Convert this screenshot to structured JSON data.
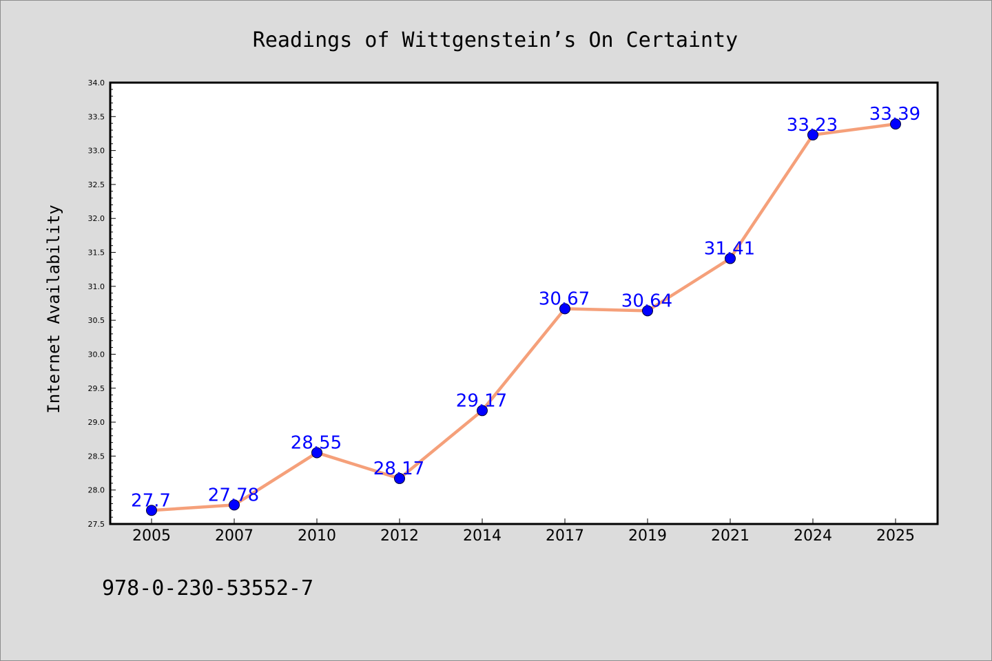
{
  "colors": {
    "background": "#dcdcdc",
    "plot_background": "#ffffff",
    "line": "#f5a07a",
    "marker": "#0000ff",
    "data_label": "#0000ff"
  },
  "footer": {
    "isbn": "978-0-230-53552-7"
  },
  "chart_data": {
    "type": "line",
    "title": "Readings of Wittgenstein’s On Certainty",
    "xlabel": "",
    "ylabel": "Internet Availability",
    "categories": [
      "2005",
      "2007",
      "2010",
      "2012",
      "2014",
      "2017",
      "2019",
      "2021",
      "2024",
      "2025"
    ],
    "series": [
      {
        "values": [
          27.7,
          27.78,
          28.55,
          28.17,
          29.17,
          30.67,
          30.64,
          31.41,
          33.23,
          33.39
        ],
        "labels": [
          "27.7",
          "27.78",
          "28.55",
          "28.17",
          "29.17",
          "30.67",
          "30.64",
          "31.41",
          "33.23",
          "33.39"
        ]
      }
    ],
    "ylim": [
      27.5,
      34.0
    ],
    "yticks": [
      "27.5",
      "28.0",
      "28.5",
      "29.0",
      "29.5",
      "30.0",
      "30.5",
      "31.0",
      "31.5",
      "32.0",
      "32.5",
      "33.0",
      "33.5",
      "34.0"
    ],
    "grid": false,
    "legend": "none"
  }
}
